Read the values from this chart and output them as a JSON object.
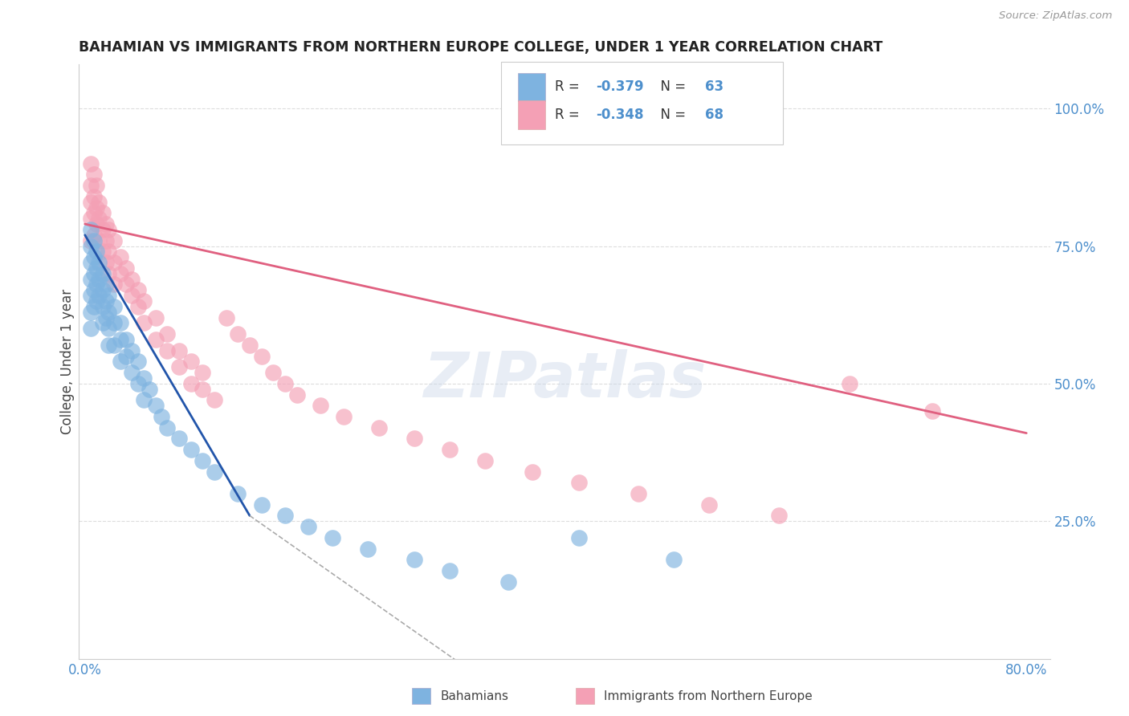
{
  "title": "BAHAMIAN VS IMMIGRANTS FROM NORTHERN EUROPE COLLEGE, UNDER 1 YEAR CORRELATION CHART",
  "source": "Source: ZipAtlas.com",
  "ylabel": "College, Under 1 year",
  "right_yticklabels": [
    "25.0%",
    "50.0%",
    "75.0%",
    "100.0%"
  ],
  "right_ytick_vals": [
    0.25,
    0.5,
    0.75,
    1.0
  ],
  "xlim": [
    -0.005,
    0.82
  ],
  "ylim": [
    0.0,
    1.08
  ],
  "watermark": "ZIPatlas",
  "blue_color": "#7eb3e0",
  "pink_color": "#f4a0b5",
  "blue_line_color": "#2255aa",
  "pink_line_color": "#e06080",
  "background_color": "#ffffff",
  "grid_color": "#dddddd",
  "axis_label_color": "#4d8fcc",
  "title_color": "#222222",
  "blue_R": "-0.379",
  "blue_N": "63",
  "pink_R": "-0.348",
  "pink_N": "68",
  "blue_scatter": {
    "x": [
      0.005,
      0.005,
      0.005,
      0.005,
      0.005,
      0.005,
      0.005,
      0.008,
      0.008,
      0.008,
      0.008,
      0.008,
      0.01,
      0.01,
      0.01,
      0.01,
      0.012,
      0.012,
      0.012,
      0.015,
      0.015,
      0.015,
      0.015,
      0.018,
      0.018,
      0.018,
      0.02,
      0.02,
      0.02,
      0.02,
      0.025,
      0.025,
      0.025,
      0.03,
      0.03,
      0.03,
      0.035,
      0.035,
      0.04,
      0.04,
      0.045,
      0.045,
      0.05,
      0.05,
      0.055,
      0.06,
      0.065,
      0.07,
      0.08,
      0.09,
      0.1,
      0.11,
      0.13,
      0.15,
      0.17,
      0.19,
      0.21,
      0.24,
      0.28,
      0.31,
      0.36,
      0.42,
      0.5
    ],
    "y": [
      0.78,
      0.75,
      0.72,
      0.69,
      0.66,
      0.63,
      0.6,
      0.76,
      0.73,
      0.7,
      0.67,
      0.64,
      0.74,
      0.71,
      0.68,
      0.65,
      0.72,
      0.69,
      0.66,
      0.7,
      0.67,
      0.64,
      0.61,
      0.68,
      0.65,
      0.62,
      0.66,
      0.63,
      0.6,
      0.57,
      0.64,
      0.61,
      0.57,
      0.61,
      0.58,
      0.54,
      0.58,
      0.55,
      0.56,
      0.52,
      0.54,
      0.5,
      0.51,
      0.47,
      0.49,
      0.46,
      0.44,
      0.42,
      0.4,
      0.38,
      0.36,
      0.34,
      0.3,
      0.28,
      0.26,
      0.24,
      0.22,
      0.2,
      0.18,
      0.16,
      0.14,
      0.22,
      0.18
    ]
  },
  "pink_scatter": {
    "x": [
      0.005,
      0.005,
      0.005,
      0.005,
      0.005,
      0.008,
      0.008,
      0.008,
      0.008,
      0.01,
      0.01,
      0.01,
      0.012,
      0.012,
      0.012,
      0.015,
      0.015,
      0.015,
      0.018,
      0.018,
      0.018,
      0.02,
      0.02,
      0.02,
      0.025,
      0.025,
      0.025,
      0.03,
      0.03,
      0.035,
      0.035,
      0.04,
      0.04,
      0.045,
      0.045,
      0.05,
      0.05,
      0.06,
      0.06,
      0.07,
      0.07,
      0.08,
      0.08,
      0.09,
      0.09,
      0.1,
      0.1,
      0.11,
      0.12,
      0.13,
      0.14,
      0.15,
      0.16,
      0.17,
      0.18,
      0.2,
      0.22,
      0.25,
      0.28,
      0.31,
      0.34,
      0.38,
      0.42,
      0.47,
      0.53,
      0.59,
      0.65,
      0.72
    ],
    "y": [
      0.9,
      0.86,
      0.83,
      0.8,
      0.76,
      0.88,
      0.84,
      0.81,
      0.77,
      0.86,
      0.82,
      0.79,
      0.83,
      0.8,
      0.76,
      0.81,
      0.78,
      0.74,
      0.79,
      0.76,
      0.72,
      0.78,
      0.74,
      0.7,
      0.76,
      0.72,
      0.68,
      0.73,
      0.7,
      0.71,
      0.68,
      0.69,
      0.66,
      0.67,
      0.64,
      0.65,
      0.61,
      0.62,
      0.58,
      0.59,
      0.56,
      0.56,
      0.53,
      0.54,
      0.5,
      0.52,
      0.49,
      0.47,
      0.62,
      0.59,
      0.57,
      0.55,
      0.52,
      0.5,
      0.48,
      0.46,
      0.44,
      0.42,
      0.4,
      0.38,
      0.36,
      0.34,
      0.32,
      0.3,
      0.28,
      0.26,
      0.5,
      0.45
    ]
  },
  "blue_line_solid": {
    "x": [
      0.0,
      0.14
    ],
    "y": [
      0.77,
      0.26
    ]
  },
  "blue_line_dash": {
    "x": [
      0.14,
      0.38
    ],
    "y": [
      0.26,
      -0.1
    ]
  },
  "pink_line": {
    "x": [
      0.0,
      0.8
    ],
    "y": [
      0.79,
      0.41
    ]
  }
}
